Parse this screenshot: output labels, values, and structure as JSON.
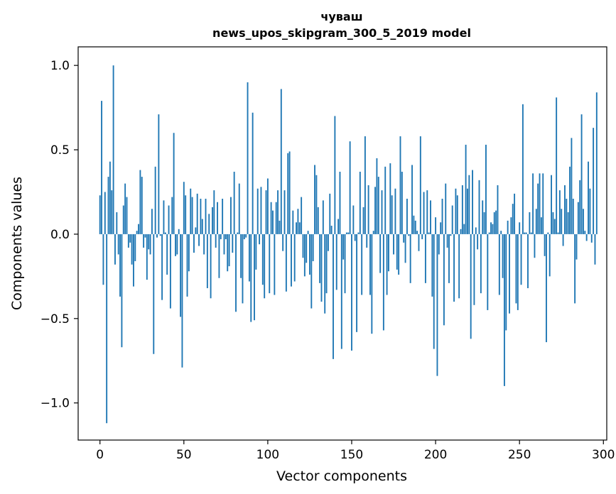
{
  "chart_data": {
    "type": "bar",
    "title": "чуваш",
    "subtitle": "news_upos_skipgram_300_5_2019 model",
    "xlabel": "Vector components",
    "ylabel": "Components values",
    "xlim": [
      -13,
      302
    ],
    "ylim": [
      -1.22,
      1.11
    ],
    "xticks": [
      0,
      50,
      100,
      150,
      200,
      250,
      300
    ],
    "xtick_labels": [
      "0",
      "50",
      "100",
      "150",
      "200",
      "250",
      "300"
    ],
    "yticks": [
      -1.0,
      -0.5,
      0.0,
      0.5,
      1.0
    ],
    "ytick_labels": [
      "−1.0",
      "−0.5",
      "0.0",
      "0.5",
      "1.0"
    ],
    "bar_color": "#1f77b4",
    "grid": false,
    "series": [
      {
        "name": "components",
        "values": [
          0.23,
          0.79,
          -0.3,
          0.25,
          -1.12,
          0.34,
          0.43,
          0.26,
          1.0,
          -0.18,
          0.13,
          -0.12,
          -0.37,
          -0.67,
          0.17,
          0.3,
          0.22,
          -0.08,
          -0.05,
          -0.18,
          -0.31,
          -0.16,
          0.02,
          0.06,
          0.38,
          0.34,
          -0.08,
          -0.02,
          -0.27,
          -0.09,
          -0.12,
          0.15,
          -0.71,
          0.4,
          -0.02,
          0.71,
          -0.01,
          -0.39,
          0.2,
          0.01,
          -0.24,
          0.17,
          -0.44,
          0.22,
          0.6,
          -0.13,
          -0.12,
          0.03,
          -0.49,
          -0.79,
          0.31,
          0.23,
          -0.37,
          -0.22,
          0.27,
          0.22,
          -0.11,
          0.04,
          0.24,
          -0.07,
          0.21,
          0.09,
          -0.12,
          0.21,
          -0.32,
          0.12,
          -0.38,
          0.16,
          0.26,
          -0.08,
          0.19,
          -0.26,
          -0.03,
          0.21,
          -0.12,
          -0.03,
          -0.22,
          -0.19,
          0.22,
          -0.11,
          0.37,
          -0.46,
          0.01,
          0.3,
          -0.26,
          -0.41,
          -0.03,
          -0.02,
          0.9,
          -0.28,
          -0.52,
          0.72,
          -0.51,
          -0.21,
          0.27,
          -0.06,
          0.28,
          -0.3,
          -0.38,
          0.26,
          0.33,
          -0.35,
          0.19,
          0.14,
          -0.36,
          0.19,
          0.26,
          0.08,
          0.86,
          -0.1,
          0.26,
          -0.34,
          0.48,
          0.49,
          -0.31,
          0.14,
          -0.28,
          0.07,
          0.15,
          0.07,
          0.22,
          -0.14,
          -0.25,
          -0.17,
          0.02,
          -0.24,
          -0.44,
          -0.16,
          0.41,
          0.35,
          0.16,
          -0.29,
          -0.4,
          0.2,
          -0.47,
          -0.35,
          -0.1,
          0.24,
          0.05,
          -0.74,
          0.7,
          -0.33,
          0.09,
          0.37,
          -0.68,
          -0.15,
          -0.35,
          0.01,
          0.01,
          0.55,
          -0.69,
          0.17,
          -0.04,
          -0.58,
          0.01,
          0.37,
          -0.36,
          0.16,
          0.58,
          -0.08,
          0.29,
          -0.36,
          -0.59,
          0.02,
          0.28,
          0.45,
          0.34,
          -0.23,
          0.26,
          -0.57,
          0.4,
          -0.36,
          -0.22,
          0.42,
          0.23,
          -0.12,
          0.27,
          -0.21,
          -0.24,
          0.58,
          0.37,
          -0.05,
          -0.17,
          0.21,
          -0.01,
          -0.29,
          0.41,
          0.11,
          0.08,
          0.02,
          -0.1,
          0.58,
          -0.03,
          0.25,
          -0.29,
          0.26,
          0.01,
          0.2,
          -0.37,
          -0.68,
          0.1,
          -0.84,
          -0.12,
          0.07,
          0.21,
          -0.54,
          0.3,
          -0.08,
          -0.29,
          -0.01,
          0.17,
          -0.4,
          0.27,
          0.23,
          -0.38,
          0.03,
          0.29,
          0.06,
          0.53,
          0.27,
          0.35,
          -0.62,
          0.38,
          -0.42,
          0.04,
          -0.09,
          0.32,
          -0.35,
          0.2,
          0.13,
          0.53,
          -0.45,
          0.01,
          0.07,
          0.06,
          0.13,
          0.14,
          0.29,
          -0.36,
          0.02,
          -0.26,
          -0.9,
          -0.57,
          0.08,
          -0.47,
          0.1,
          0.18,
          0.24,
          -0.41,
          -0.45,
          0.07,
          -0.3,
          0.77,
          0.01,
          0.01,
          -0.32,
          0.13,
          0.01,
          0.36,
          -0.14,
          0.15,
          0.3,
          0.36,
          0.1,
          0.36,
          -0.13,
          -0.64,
          0.01,
          -0.25,
          0.35,
          0.13,
          0.09,
          0.81,
          0.01,
          0.26,
          0.15,
          -0.07,
          0.29,
          0.21,
          0.13,
          0.4,
          0.57,
          0.21,
          -0.41,
          -0.15,
          0.19,
          0.32,
          0.71,
          0.15,
          0.02,
          -0.04,
          0.43,
          0.27,
          -0.05,
          0.63,
          -0.18,
          0.84
        ]
      }
    ]
  }
}
